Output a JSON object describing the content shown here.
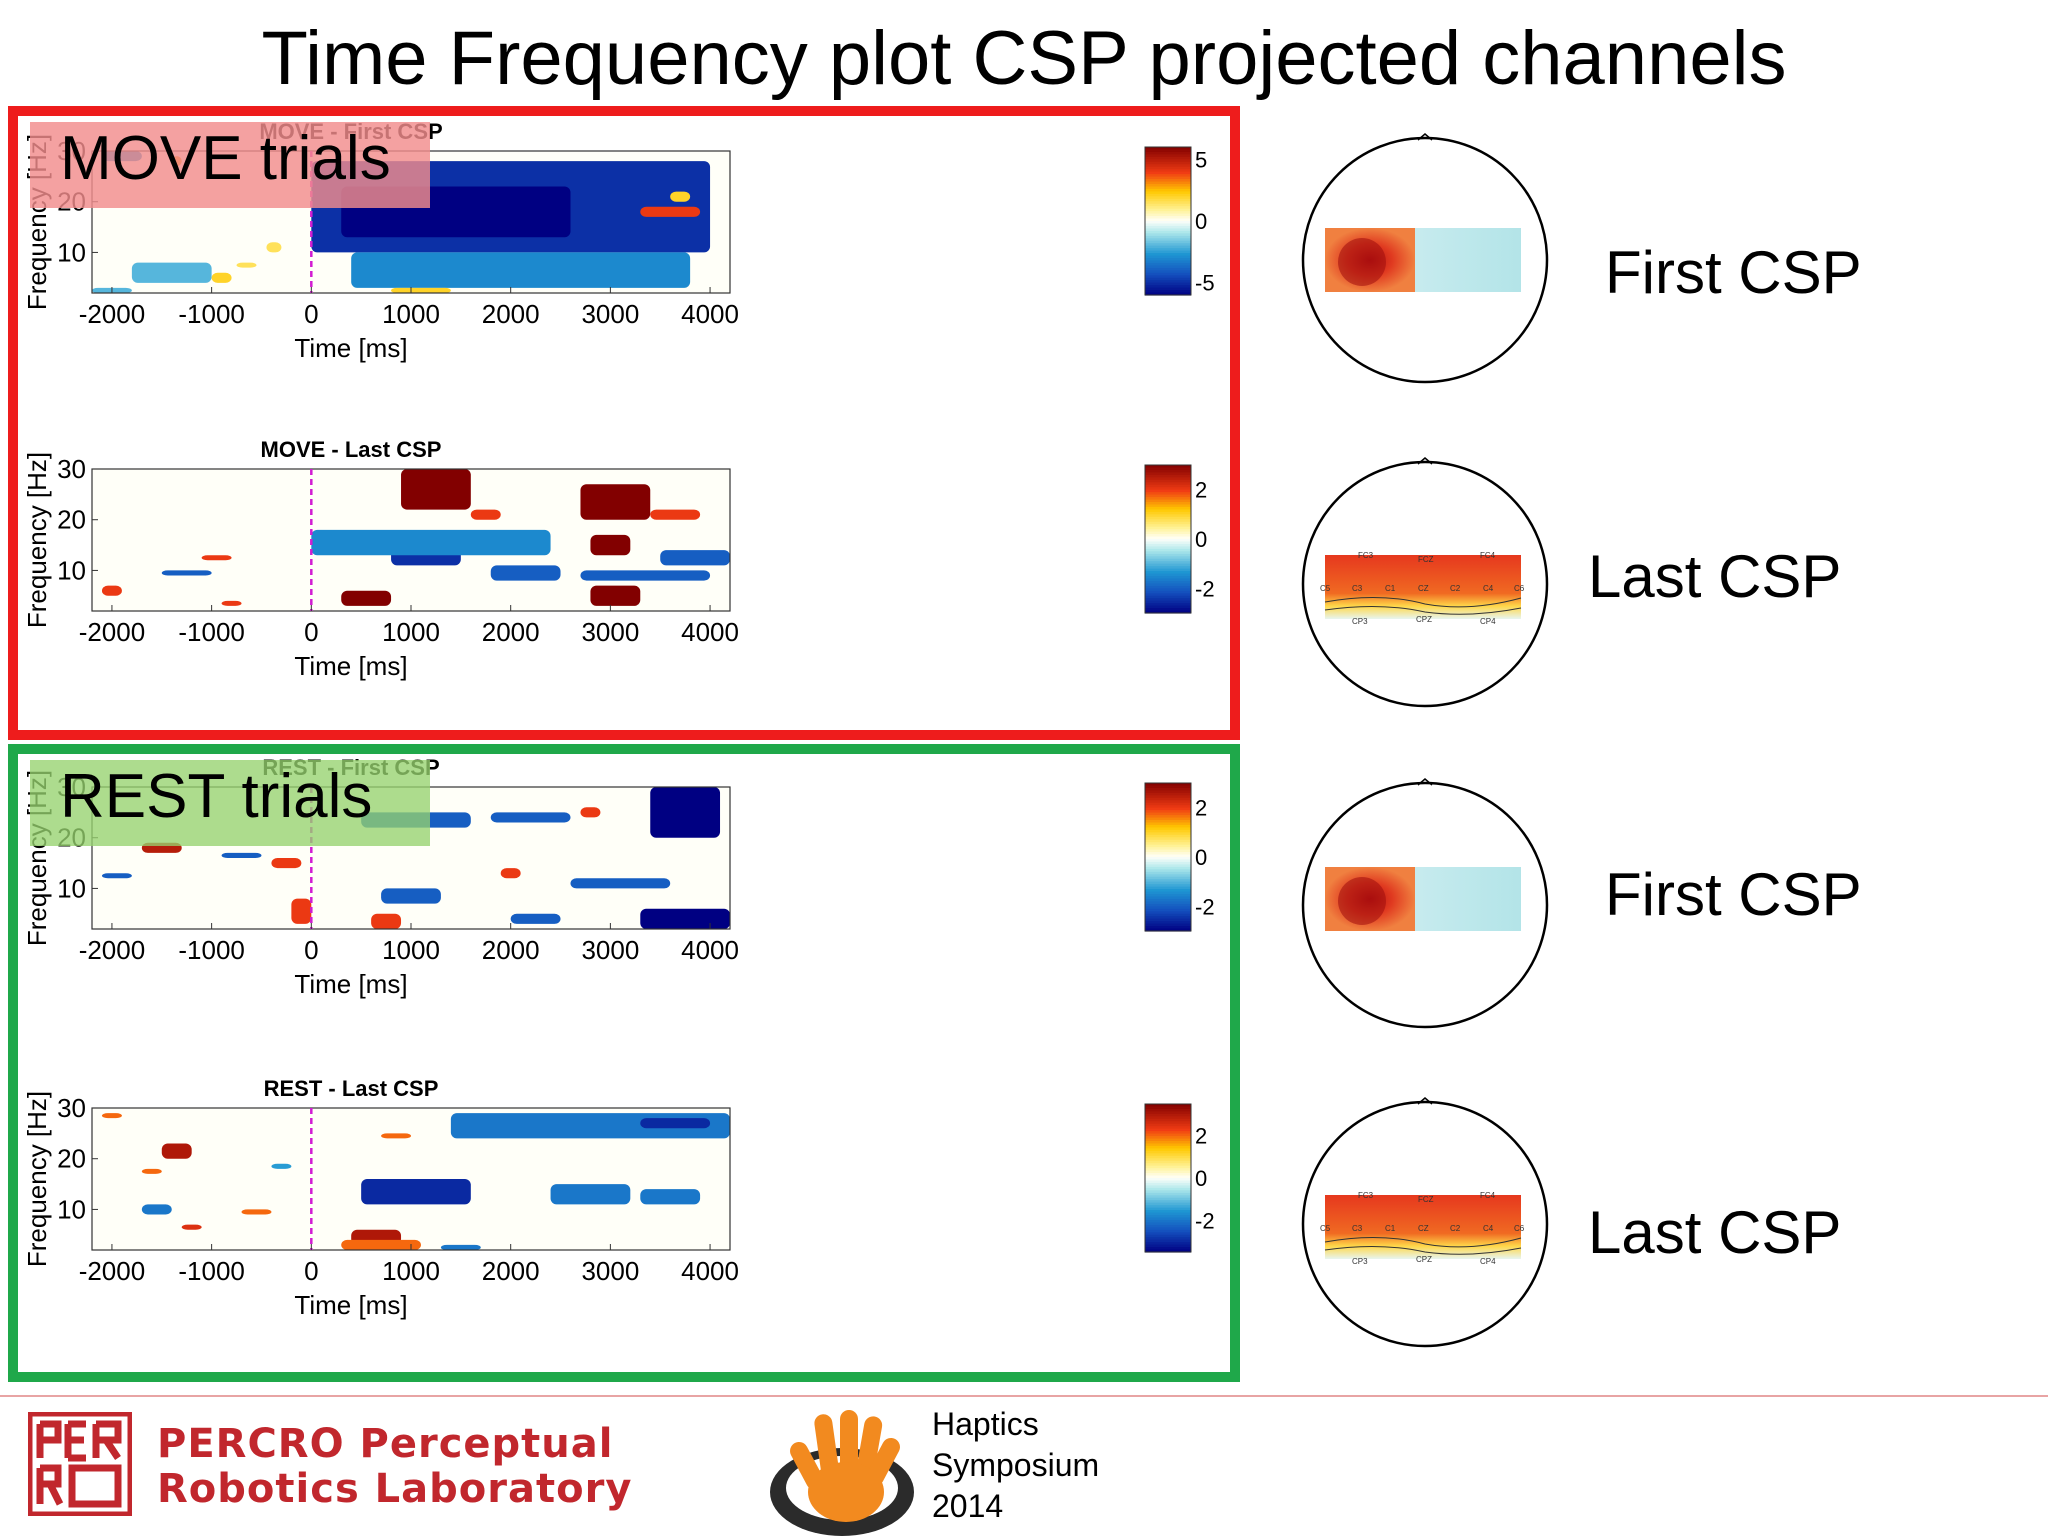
{
  "title": "Time Frequency plot CSP projected channels",
  "groups": [
    {
      "label": "MOVE trials",
      "border_color": "#ee1c1c",
      "label_bg": "#f29c9c"
    },
    {
      "label": "REST trials",
      "border_color": "#1fa84a",
      "label_bg": "#a9d88a"
    }
  ],
  "topo_labels": [
    "First CSP",
    "Last CSP",
    "First CSP",
    "Last CSP"
  ],
  "electrodes": {
    "top": [
      "FC3",
      "FCZ",
      "FC4"
    ],
    "middle": [
      "C5",
      "C3",
      "C1",
      "CZ",
      "C2",
      "C4",
      "C6"
    ],
    "bottom": [
      "CP3",
      "CPZ",
      "CP4"
    ]
  },
  "footer": {
    "lab_line1": "PERCRO Perceptual",
    "lab_line2": "Robotics Laboratory",
    "symposium": [
      "Haptics",
      "Symposium",
      "2014"
    ]
  },
  "chart_data": [
    {
      "type": "heatmap",
      "title": "MOVE - First CSP",
      "xlabel": "Time [ms]",
      "ylabel": "Frequency [Hz]",
      "xlim": [
        -2200,
        4200
      ],
      "ylim": [
        2,
        30
      ],
      "xticks": [
        "-2000",
        "-1000",
        "0",
        "1000",
        "2000",
        "3000",
        "4000"
      ],
      "yticks": [
        "10",
        "20",
        "30"
      ],
      "colorbar": {
        "range": [
          -6,
          6
        ],
        "ticks": [
          "5",
          "0",
          "-5"
        ],
        "values": [
          5,
          0,
          -5
        ]
      },
      "event_line_x": 0,
      "blobs": [
        {
          "t": [
            0,
            4000
          ],
          "f": [
            10,
            28
          ],
          "v": -5
        },
        {
          "t": [
            400,
            3800
          ],
          "f": [
            3,
            10
          ],
          "v": -3
        },
        {
          "t": [
            300,
            2600
          ],
          "f": [
            13,
            23
          ],
          "v": -6
        },
        {
          "t": [
            -1800,
            -1000
          ],
          "f": [
            4,
            8
          ],
          "v": -2
        },
        {
          "t": [
            -2200,
            -1800
          ],
          "f": [
            2,
            3
          ],
          "v": -2
        },
        {
          "t": [
            -1000,
            -800
          ],
          "f": [
            4,
            6
          ],
          "v": 2
        },
        {
          "t": [
            -450,
            -300
          ],
          "f": [
            10,
            12
          ],
          "v": 1.5
        },
        {
          "t": [
            -750,
            -550
          ],
          "f": [
            7,
            8
          ],
          "v": 1.5
        },
        {
          "t": [
            3300,
            3900
          ],
          "f": [
            17,
            19
          ],
          "v": 4
        },
        {
          "t": [
            3600,
            3800
          ],
          "f": [
            20,
            22
          ],
          "v": 2
        },
        {
          "t": [
            -1400,
            -1300
          ],
          "f": [
            27,
            29
          ],
          "v": 3
        },
        {
          "t": [
            800,
            1400
          ],
          "f": [
            2,
            3
          ],
          "v": 2
        },
        {
          "t": [
            -2100,
            -1700
          ],
          "f": [
            28,
            30
          ],
          "v": -3
        }
      ]
    },
    {
      "type": "heatmap",
      "title": "MOVE - Last CSP",
      "xlabel": "Time [ms]",
      "ylabel": "Frequency [Hz]",
      "xlim": [
        -2200,
        4200
      ],
      "ylim": [
        2,
        30
      ],
      "xticks": [
        "-2000",
        "-1000",
        "0",
        "1000",
        "2000",
        "3000",
        "4000"
      ],
      "yticks": [
        "10",
        "20",
        "30"
      ],
      "colorbar": {
        "range": [
          -3,
          3
        ],
        "ticks": [
          "2",
          "0",
          "-2"
        ],
        "values": [
          2,
          0,
          -2
        ]
      },
      "event_line_x": 0,
      "blobs": [
        {
          "t": [
            900,
            1600
          ],
          "f": [
            22,
            30
          ],
          "v": 3
        },
        {
          "t": [
            2700,
            3400
          ],
          "f": [
            20,
            27
          ],
          "v": 3
        },
        {
          "t": [
            2800,
            3200
          ],
          "f": [
            13,
            17
          ],
          "v": 3
        },
        {
          "t": [
            2800,
            3300
          ],
          "f": [
            3,
            7
          ],
          "v": 3
        },
        {
          "t": [
            300,
            800
          ],
          "f": [
            3,
            6
          ],
          "v": 3
        },
        {
          "t": [
            3400,
            3900
          ],
          "f": [
            20,
            22
          ],
          "v": 2
        },
        {
          "t": [
            1600,
            1900
          ],
          "f": [
            20,
            22
          ],
          "v": 2
        },
        {
          "t": [
            800,
            1500
          ],
          "f": [
            11,
            17
          ],
          "v": -2.5
        },
        {
          "t": [
            0,
            2400
          ],
          "f": [
            13,
            18
          ],
          "v": -1.5
        },
        {
          "t": [
            1800,
            2500
          ],
          "f": [
            8,
            11
          ],
          "v": -2
        },
        {
          "t": [
            2700,
            4000
          ],
          "f": [
            8,
            10
          ],
          "v": -2
        },
        {
          "t": [
            3500,
            4200
          ],
          "f": [
            11,
            14
          ],
          "v": -2
        },
        {
          "t": [
            -1500,
            -1000
          ],
          "f": [
            9,
            10
          ],
          "v": -2
        },
        {
          "t": [
            -1100,
            -800
          ],
          "f": [
            12,
            13
          ],
          "v": 2
        },
        {
          "t": [
            -900,
            -700
          ],
          "f": [
            3,
            4
          ],
          "v": 2
        },
        {
          "t": [
            -2100,
            -1900
          ],
          "f": [
            5,
            7
          ],
          "v": 2
        }
      ]
    },
    {
      "type": "heatmap",
      "title": "REST - First CSP",
      "xlabel": "Time [ms]",
      "ylabel": "Frequency [Hz]",
      "xlim": [
        -2200,
        4200
      ],
      "ylim": [
        2,
        30
      ],
      "xticks": [
        "-2000",
        "-1000",
        "0",
        "1000",
        "2000",
        "3000",
        "4000"
      ],
      "yticks": [
        "10",
        "20",
        "30"
      ],
      "colorbar": {
        "range": [
          -3,
          3
        ],
        "ticks": [
          "2",
          "0",
          "-2"
        ],
        "values": [
          2,
          0,
          -2
        ]
      },
      "event_line_x": 0,
      "blobs": [
        {
          "t": [
            3400,
            4100
          ],
          "f": [
            20,
            30
          ],
          "v": -3
        },
        {
          "t": [
            500,
            1600
          ],
          "f": [
            22,
            25
          ],
          "v": -2
        },
        {
          "t": [
            1800,
            2600
          ],
          "f": [
            23,
            25
          ],
          "v": -2
        },
        {
          "t": [
            2600,
            3600
          ],
          "f": [
            10,
            12
          ],
          "v": -2
        },
        {
          "t": [
            700,
            1300
          ],
          "f": [
            7,
            10
          ],
          "v": -2
        },
        {
          "t": [
            3300,
            4200
          ],
          "f": [
            2,
            6
          ],
          "v": -3
        },
        {
          "t": [
            2000,
            2500
          ],
          "f": [
            3,
            5
          ],
          "v": -2
        },
        {
          "t": [
            -1700,
            -1300
          ],
          "f": [
            17,
            19
          ],
          "v": 2.5
        },
        {
          "t": [
            -400,
            -100
          ],
          "f": [
            14,
            16
          ],
          "v": 2
        },
        {
          "t": [
            -200,
            0
          ],
          "f": [
            3,
            8
          ],
          "v": 2
        },
        {
          "t": [
            600,
            900
          ],
          "f": [
            2,
            5
          ],
          "v": 2
        },
        {
          "t": [
            1900,
            2100
          ],
          "f": [
            12,
            14
          ],
          "v": 2
        },
        {
          "t": [
            2700,
            2900
          ],
          "f": [
            24,
            26
          ],
          "v": 2
        },
        {
          "t": [
            -2100,
            -1800
          ],
          "f": [
            12,
            13
          ],
          "v": -2
        },
        {
          "t": [
            -900,
            -500
          ],
          "f": [
            16,
            17
          ],
          "v": -2
        }
      ]
    },
    {
      "type": "heatmap",
      "title": "REST - Last CSP",
      "xlabel": "Time [ms]",
      "ylabel": "Frequency [Hz]",
      "xlim": [
        -2200,
        4200
      ],
      "ylim": [
        2,
        30
      ],
      "xticks": [
        "-2000",
        "-1000",
        "0",
        "1000",
        "2000",
        "3000",
        "4000"
      ],
      "yticks": [
        "10",
        "20",
        "30"
      ],
      "colorbar": {
        "range": [
          -3.5,
          3.5
        ],
        "ticks": [
          "2",
          "0",
          "-2"
        ],
        "values": [
          2,
          0,
          -2
        ]
      },
      "event_line_x": 0,
      "blobs": [
        {
          "t": [
            500,
            1600
          ],
          "f": [
            11,
            16
          ],
          "v": -3
        },
        {
          "t": [
            2400,
            3200
          ],
          "f": [
            11,
            15
          ],
          "v": -2
        },
        {
          "t": [
            3300,
            3900
          ],
          "f": [
            11,
            14
          ],
          "v": -2
        },
        {
          "t": [
            1400,
            4200
          ],
          "f": [
            24,
            29
          ],
          "v": -2
        },
        {
          "t": [
            3300,
            4000
          ],
          "f": [
            26,
            28
          ],
          "v": -3
        },
        {
          "t": [
            400,
            900
          ],
          "f": [
            3,
            6
          ],
          "v": 3
        },
        {
          "t": [
            300,
            1100
          ],
          "f": [
            2,
            4
          ],
          "v": 2
        },
        {
          "t": [
            -1500,
            -1200
          ],
          "f": [
            20,
            23
          ],
          "v": 3
        },
        {
          "t": [
            -1700,
            -1500
          ],
          "f": [
            17,
            18
          ],
          "v": 2
        },
        {
          "t": [
            -700,
            -400
          ],
          "f": [
            9,
            10
          ],
          "v": 2
        },
        {
          "t": [
            -1300,
            -1100
          ],
          "f": [
            6,
            7
          ],
          "v": 2.5
        },
        {
          "t": [
            -2100,
            -1900
          ],
          "f": [
            28,
            29
          ],
          "v": 2
        },
        {
          "t": [
            700,
            1000
          ],
          "f": [
            24,
            25
          ],
          "v": 2
        },
        {
          "t": [
            -1700,
            -1400
          ],
          "f": [
            9,
            11
          ],
          "v": -2
        },
        {
          "t": [
            -400,
            -200
          ],
          "f": [
            18,
            19
          ],
          "v": -1.5
        },
        {
          "t": [
            1300,
            1700
          ],
          "f": [
            2,
            3
          ],
          "v": -2
        }
      ]
    }
  ]
}
